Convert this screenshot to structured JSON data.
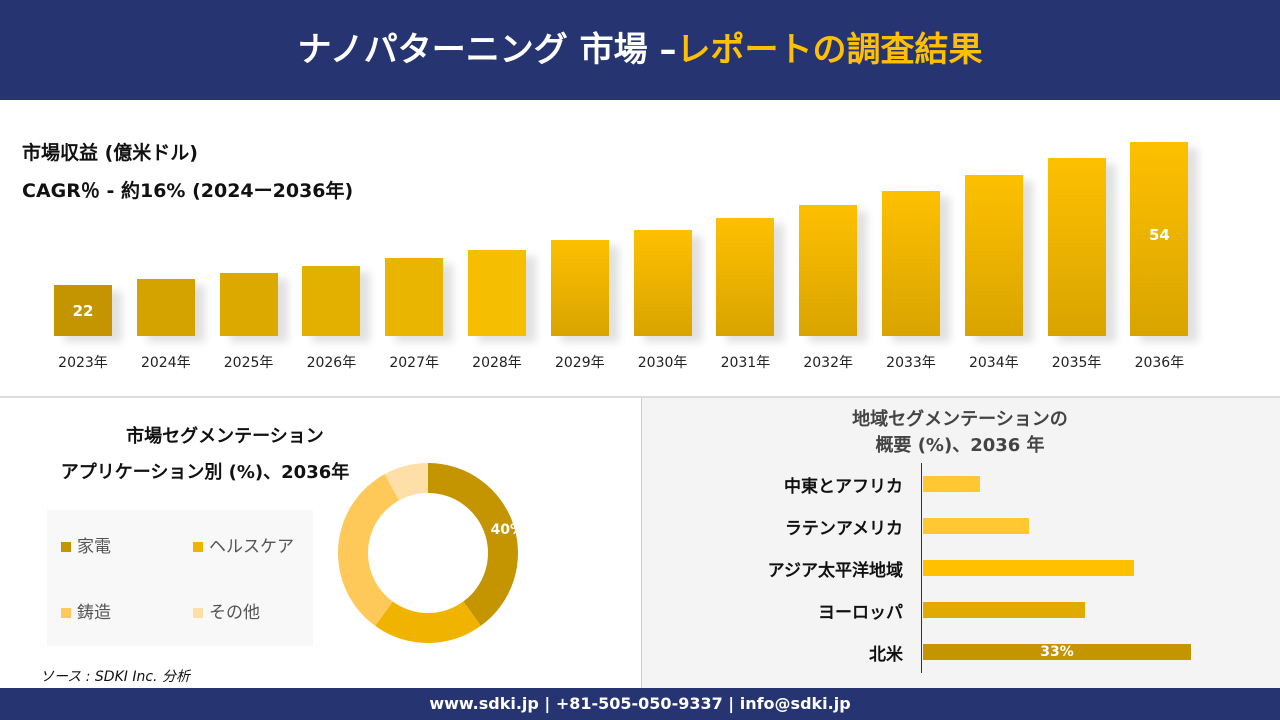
{
  "header": {
    "title_white": "ナノパターニング 市場 –",
    "title_yellow": "レポートの調査結果"
  },
  "revenue": {
    "heading": "市場収益 (億米ドル)",
    "cagr": "CAGR％ - 約16% (2024ー2036年)"
  },
  "chart_data": [
    {
      "type": "bar",
      "title": "市場収益 (億米ドル)",
      "categories": [
        "2023年",
        "2024年",
        "2025年",
        "2026年",
        "2027年",
        "2028年",
        "2029年",
        "2030年",
        "2031年",
        "2032年",
        "2033年",
        "2034年",
        "2035年",
        "2036年"
      ],
      "values": [
        22,
        23.4,
        24.7,
        26.3,
        28.1,
        29.8,
        32.1,
        34.3,
        37,
        39.9,
        43,
        46.6,
        50.4,
        54
      ],
      "data_labels": {
        "0": "22",
        "13": "54"
      },
      "colors": [
        "#c49500",
        "#d4a300",
        "#dba900",
        "#e3b000",
        "#eab500",
        "#f5bf00",
        "#fdc000",
        "#fdc000",
        "#fdc000",
        "#fdc000",
        "#fdc000",
        "#fdc000",
        "#fdc000",
        "#fdc000"
      ]
    },
    {
      "type": "pie",
      "title": "市場セグメンテーション アプリケーション別 (%)、2036年",
      "categories": [
        "家電",
        "ヘルスケア",
        "鋳造",
        "その他"
      ],
      "values": [
        40,
        20,
        32,
        8
      ],
      "data_labels": {
        "0": "40%"
      },
      "colors": [
        "#c49500",
        "#f0b400",
        "#ffc95a",
        "#ffdfa8"
      ]
    },
    {
      "type": "bar",
      "orientation": "horizontal",
      "title": "地域セグメンテーションの 概要 (%)、2036 年",
      "categories": [
        "中東とアフリカ",
        "ラテンアメリカ",
        "アジア太平洋地域",
        "ヨーロッパ",
        "北米"
      ],
      "values": [
        7,
        13,
        26,
        20,
        33
      ],
      "data_labels": {
        "4": "33%"
      },
      "colors": [
        "#ffc832",
        "#ffc832",
        "#ffc000",
        "#e0aa00",
        "#c49500"
      ]
    }
  ],
  "app_seg": {
    "title1": "市場セグメンテーション",
    "title2": "アプリケーション別 (%)、2036年"
  },
  "region_seg": {
    "title1": "地域セグメンテーションの",
    "title2": "概要 (%)、2036 年"
  },
  "source": "ソース : SDKI Inc. 分析",
  "footer": "www.sdki.jp | +81-505-050-9337 | info@sdki.jp"
}
